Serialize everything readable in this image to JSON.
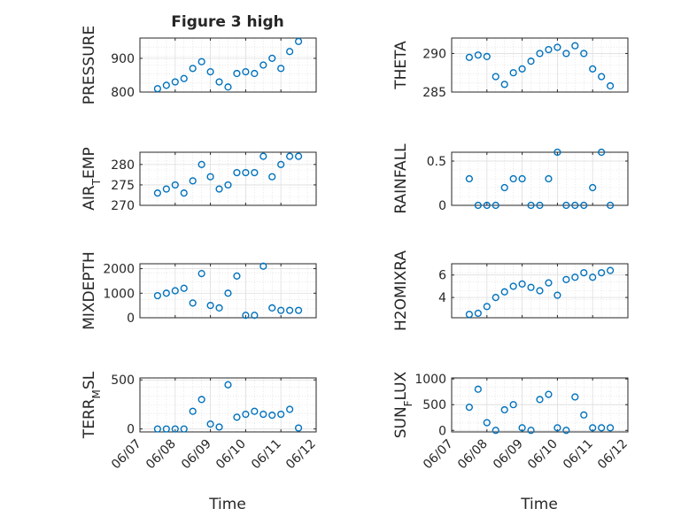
{
  "figure": {
    "title": "Figure 3 high",
    "xlabel": "Time",
    "x_ticks": [
      "06/07",
      "06/08",
      "06/09",
      "06/10",
      "06/11",
      "06/12"
    ],
    "marker_color": "#0072BD"
  },
  "chart_data": [
    {
      "type": "scatter",
      "ylabel": "PRESSURE",
      "ylim": [
        800,
        960
      ],
      "yticks": [
        800,
        900
      ],
      "ytick_labels": [
        "800",
        "900"
      ],
      "x": [
        "06/07 12:00",
        "06/07 18:00",
        "06/08 00:00",
        "06/08 06:00",
        "06/08 12:00",
        "06/08 18:00",
        "06/09 00:00",
        "06/09 06:00",
        "06/09 12:00",
        "06/09 18:00",
        "06/10 00:00",
        "06/10 06:00",
        "06/10 12:00",
        "06/10 18:00",
        "06/11 00:00",
        "06/11 06:00",
        "06/11 12:00"
      ],
      "y": [
        810,
        820,
        830,
        840,
        870,
        890,
        860,
        830,
        815,
        855,
        860,
        855,
        880,
        900,
        870,
        920,
        950
      ]
    },
    {
      "type": "scatter",
      "ylabel": "THETA",
      "ylim": [
        285,
        292
      ],
      "yticks": [
        285,
        290
      ],
      "ytick_labels": [
        "285",
        "290"
      ],
      "x": [
        "06/07 12:00",
        "06/07 18:00",
        "06/08 00:00",
        "06/08 06:00",
        "06/08 12:00",
        "06/08 18:00",
        "06/09 00:00",
        "06/09 06:00",
        "06/09 12:00",
        "06/09 18:00",
        "06/10 00:00",
        "06/10 06:00",
        "06/10 12:00",
        "06/10 18:00",
        "06/11 00:00",
        "06/11 06:00",
        "06/11 12:00"
      ],
      "y": [
        289.5,
        289.8,
        289.6,
        287,
        286,
        287.5,
        288,
        289,
        290,
        290.5,
        290.8,
        290,
        291,
        290,
        288,
        287,
        285.8
      ]
    },
    {
      "type": "scatter",
      "ylabel": "AIR_TEMP",
      "ylim": [
        270,
        283
      ],
      "yticks": [
        270,
        275,
        280
      ],
      "ytick_labels": [
        "270",
        "275",
        "280"
      ],
      "x": [
        "06/07 12:00",
        "06/07 18:00",
        "06/08 00:00",
        "06/08 06:00",
        "06/08 12:00",
        "06/08 18:00",
        "06/09 00:00",
        "06/09 06:00",
        "06/09 12:00",
        "06/09 18:00",
        "06/10 00:00",
        "06/10 06:00",
        "06/10 12:00",
        "06/10 18:00",
        "06/11 00:00",
        "06/11 06:00",
        "06/11 12:00"
      ],
      "y": [
        273,
        274,
        275,
        273,
        276,
        280,
        277,
        274,
        275,
        278,
        278,
        278,
        282,
        277,
        280,
        282,
        282
      ]
    },
    {
      "type": "scatter",
      "ylabel": "RAINFALL",
      "ylim": [
        0,
        0.6
      ],
      "yticks": [
        0,
        0.5
      ],
      "ytick_labels": [
        "0",
        "0.5"
      ],
      "x": [
        "06/07 12:00",
        "06/07 18:00",
        "06/08 00:00",
        "06/08 06:00",
        "06/08 12:00",
        "06/08 18:00",
        "06/09 00:00",
        "06/09 06:00",
        "06/09 12:00",
        "06/09 18:00",
        "06/10 00:00",
        "06/10 06:00",
        "06/10 12:00",
        "06/10 18:00",
        "06/11 00:00",
        "06/11 06:00",
        "06/11 12:00"
      ],
      "y": [
        0.3,
        0,
        0,
        0,
        0.2,
        0.3,
        0.3,
        0,
        0,
        0.3,
        0.6,
        0,
        0,
        0,
        0.2,
        0.6,
        0
      ]
    },
    {
      "type": "scatter",
      "ylabel": "MIXDEPTH",
      "ylim": [
        0,
        2200
      ],
      "yticks": [
        0,
        1000,
        2000
      ],
      "ytick_labels": [
        "0",
        "1000",
        "2000"
      ],
      "x": [
        "06/07 12:00",
        "06/07 18:00",
        "06/08 00:00",
        "06/08 06:00",
        "06/08 12:00",
        "06/08 18:00",
        "06/09 00:00",
        "06/09 06:00",
        "06/09 12:00",
        "06/09 18:00",
        "06/10 00:00",
        "06/10 06:00",
        "06/10 12:00",
        "06/10 18:00",
        "06/11 00:00",
        "06/11 06:00",
        "06/11 12:00"
      ],
      "y": [
        900,
        1000,
        1100,
        1200,
        600,
        1800,
        500,
        400,
        1000,
        1700,
        100,
        100,
        2100,
        400,
        300,
        300,
        300
      ]
    },
    {
      "type": "scatter",
      "ylabel": "H2OMIXRA",
      "ylim": [
        2.2,
        7
      ],
      "yticks": [
        4,
        6
      ],
      "ytick_labels": [
        "4",
        "6"
      ],
      "x": [
        "06/07 12:00",
        "06/07 18:00",
        "06/08 00:00",
        "06/08 06:00",
        "06/08 12:00",
        "06/08 18:00",
        "06/09 00:00",
        "06/09 06:00",
        "06/09 12:00",
        "06/09 18:00",
        "06/10 00:00",
        "06/10 06:00",
        "06/10 12:00",
        "06/10 18:00",
        "06/11 00:00",
        "06/11 06:00",
        "06/11 12:00"
      ],
      "y": [
        2.5,
        2.6,
        3.2,
        4,
        4.5,
        5,
        5.2,
        4.9,
        4.6,
        5.3,
        4.2,
        5.6,
        5.8,
        6.2,
        5.8,
        6.2,
        6.4
      ]
    },
    {
      "type": "scatter",
      "ylabel": "TERR_MSL",
      "ylim": [
        -30,
        520
      ],
      "yticks": [
        0,
        500
      ],
      "ytick_labels": [
        "0",
        "500"
      ],
      "x": [
        "06/07 12:00",
        "06/07 18:00",
        "06/08 00:00",
        "06/08 06:00",
        "06/08 12:00",
        "06/08 18:00",
        "06/09 00:00",
        "06/09 06:00",
        "06/09 12:00",
        "06/09 18:00",
        "06/10 00:00",
        "06/10 06:00",
        "06/10 12:00",
        "06/10 18:00",
        "06/11 00:00",
        "06/11 06:00",
        "06/11 12:00"
      ],
      "y": [
        0,
        0,
        0,
        0,
        180,
        300,
        50,
        20,
        450,
        120,
        150,
        180,
        150,
        140,
        150,
        200,
        10
      ]
    },
    {
      "type": "scatter",
      "ylabel": "SUN_FLUX",
      "ylim": [
        -30,
        1020
      ],
      "yticks": [
        0,
        500,
        1000
      ],
      "ytick_labels": [
        "0",
        "500",
        "1000"
      ],
      "x": [
        "06/07 12:00",
        "06/07 18:00",
        "06/08 00:00",
        "06/08 06:00",
        "06/08 12:00",
        "06/08 18:00",
        "06/09 00:00",
        "06/09 06:00",
        "06/09 12:00",
        "06/09 18:00",
        "06/10 00:00",
        "06/10 06:00",
        "06/10 12:00",
        "06/10 18:00",
        "06/11 00:00",
        "06/11 06:00",
        "06/11 12:00"
      ],
      "y": [
        450,
        800,
        150,
        0,
        400,
        500,
        50,
        0,
        600,
        700,
        50,
        0,
        650,
        300,
        50,
        50,
        50
      ]
    }
  ]
}
